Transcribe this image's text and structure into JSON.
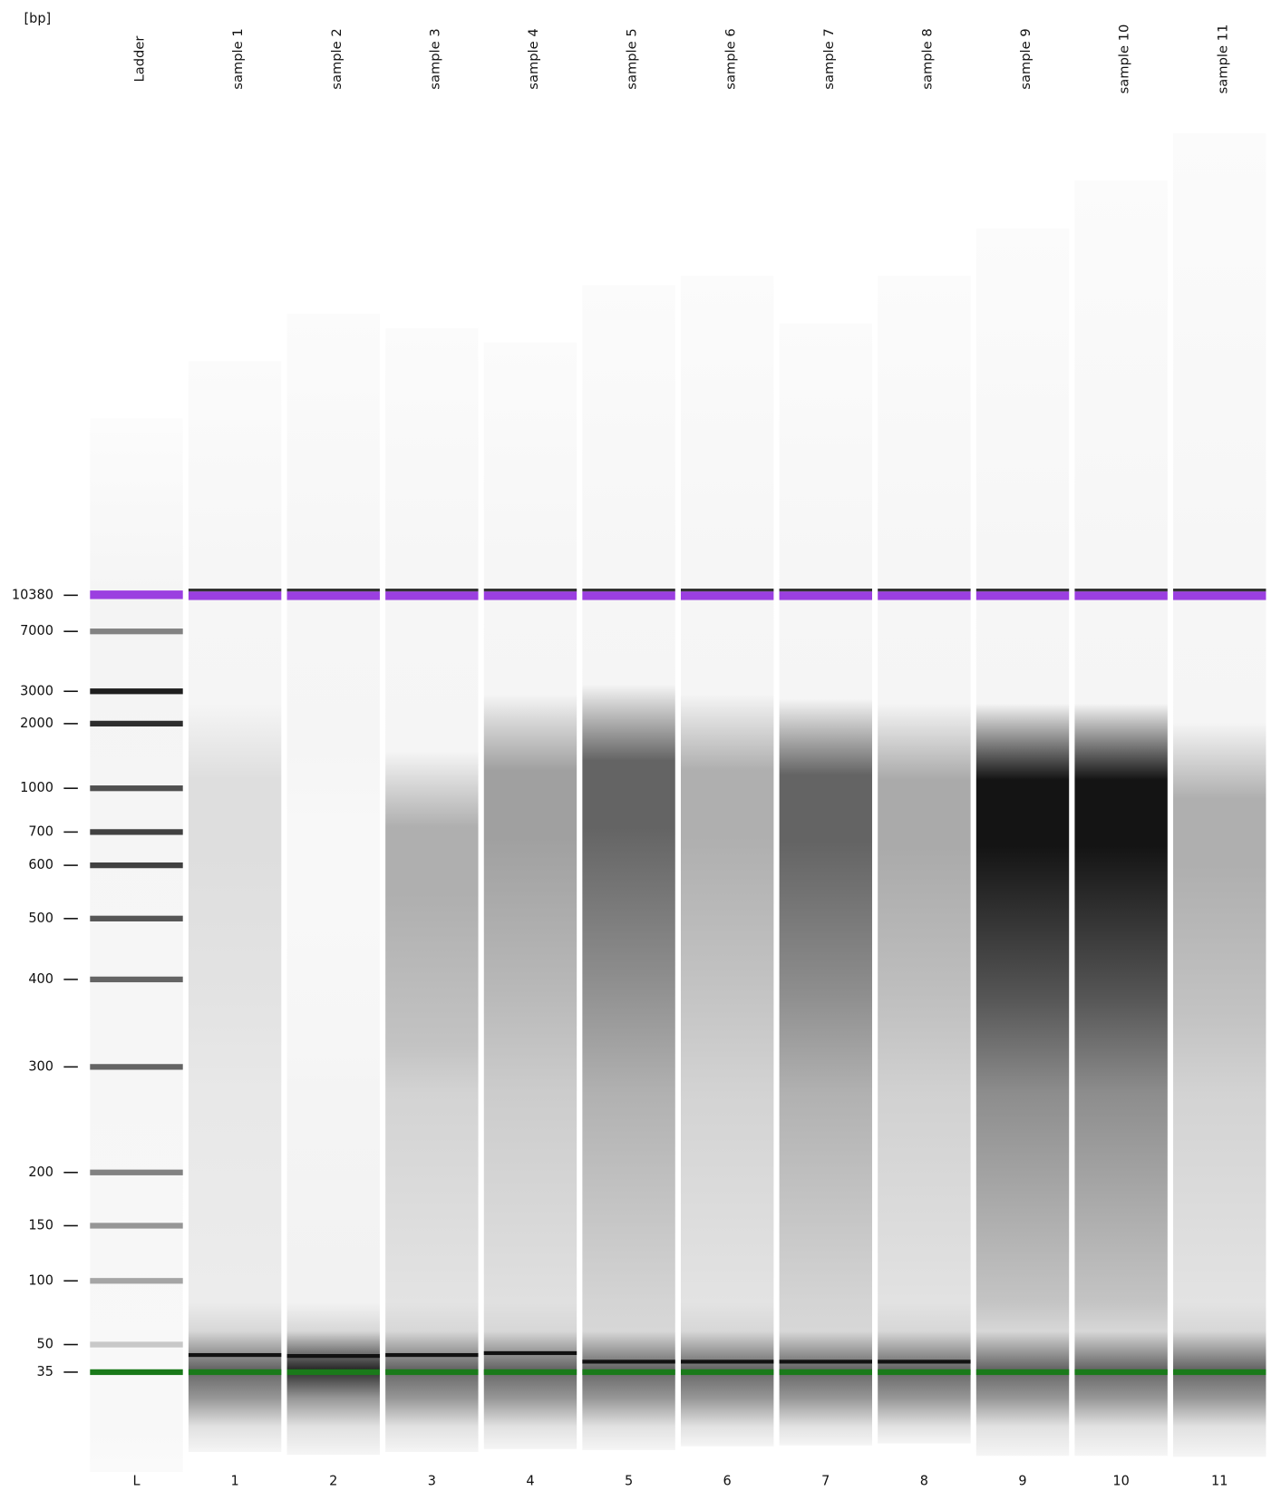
{
  "chart_data": {
    "type": "gel",
    "y_label": "[bp]",
    "lanes": [
      "Ladder",
      "sample 1",
      "sample 2",
      "sample 3",
      "sample 4",
      "sample 5",
      "sample 6",
      "sample 7",
      "sample 8",
      "sample 9",
      "sample 10",
      "sample 11"
    ],
    "lane_ids": [
      "L",
      "1",
      "2",
      "3",
      "4",
      "5",
      "6",
      "7",
      "8",
      "9",
      "10",
      "11"
    ],
    "yticks": [
      10380,
      7000,
      3000,
      2000,
      1000,
      700,
      600,
      500,
      400,
      300,
      200,
      150,
      100,
      50,
      35
    ]
  }
}
